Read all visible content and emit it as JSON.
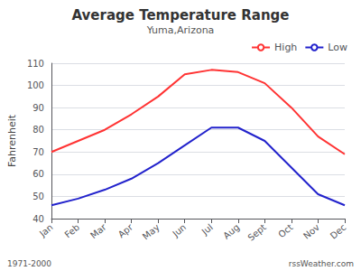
{
  "chart_data": {
    "type": "line",
    "title": "Average Temperature Range",
    "subtitle": "Yuma,Arizona",
    "y_label": "Fahrenheit",
    "categories": [
      "Jan",
      "Feb",
      "Mar",
      "Apr",
      "May",
      "Jun",
      "Jul",
      "Aug",
      "Sept",
      "Oct",
      "Nov",
      "Dec"
    ],
    "series": [
      {
        "name": "High",
        "color": "#ff3333",
        "values": [
          70,
          75,
          80,
          87,
          95,
          105,
          107,
          106,
          101,
          90,
          77,
          69
        ]
      },
      {
        "name": "Low",
        "color": "#2222cc",
        "values": [
          46,
          49,
          53,
          58,
          65,
          73,
          81,
          81,
          75,
          63,
          51,
          46
        ]
      }
    ],
    "ylim": [
      40,
      110
    ],
    "yticks": [
      40,
      50,
      60,
      70,
      80,
      90,
      100,
      110
    ],
    "grid": true,
    "legend": "upper right",
    "annotations": [
      "1971-2000",
      "rssWeather.com"
    ]
  }
}
